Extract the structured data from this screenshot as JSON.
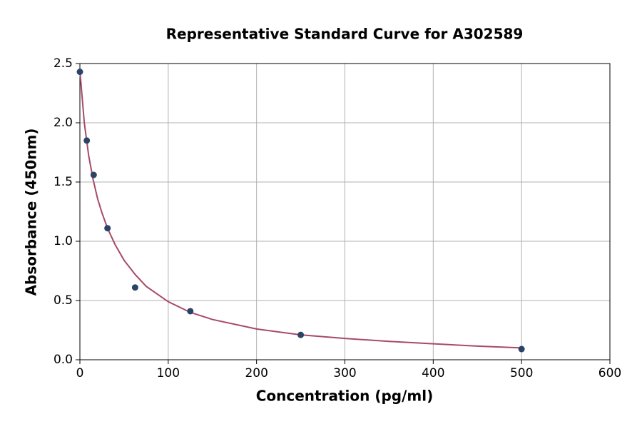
{
  "chart_data": {
    "type": "scatter",
    "title": "Representative Standard Curve for A302589",
    "xlabel": "Concentration (pg/ml)",
    "ylabel": "Absorbance (450nm)",
    "xlim": [
      0,
      600
    ],
    "xticks": [
      0,
      100,
      200,
      300,
      400,
      500,
      600
    ],
    "ylim": [
      0,
      2.5
    ],
    "yticks": [
      {
        "value": 0,
        "label": "0.0"
      },
      {
        "value": 0.5,
        "label": "0.5"
      },
      {
        "value": 1,
        "label": "1.0"
      },
      {
        "value": 1.5,
        "label": "1.5"
      },
      {
        "value": 2,
        "label": "2.0"
      },
      {
        "value": 2.5,
        "label": "2.5"
      }
    ],
    "grid": true,
    "series": [
      {
        "mode": "line",
        "color": "#a8496a",
        "x": [
          0,
          5,
          10,
          15,
          20,
          25,
          31.25,
          40,
          50,
          62.5,
          75,
          100,
          125,
          150,
          200,
          250,
          300,
          350,
          400,
          450,
          500
        ],
        "values": [
          2.44,
          2.0,
          1.72,
          1.52,
          1.36,
          1.24,
          1.11,
          0.97,
          0.84,
          0.72,
          0.62,
          0.49,
          0.4,
          0.34,
          0.26,
          0.21,
          0.18,
          0.155,
          0.135,
          0.115,
          0.1
        ]
      },
      {
        "mode": "markers",
        "color": "#2b4466",
        "x": [
          0,
          7.8,
          15.6,
          31.25,
          62.5,
          125,
          250,
          500
        ],
        "values": [
          2.43,
          1.85,
          1.56,
          1.11,
          0.61,
          0.41,
          0.21,
          0.09
        ]
      }
    ]
  }
}
